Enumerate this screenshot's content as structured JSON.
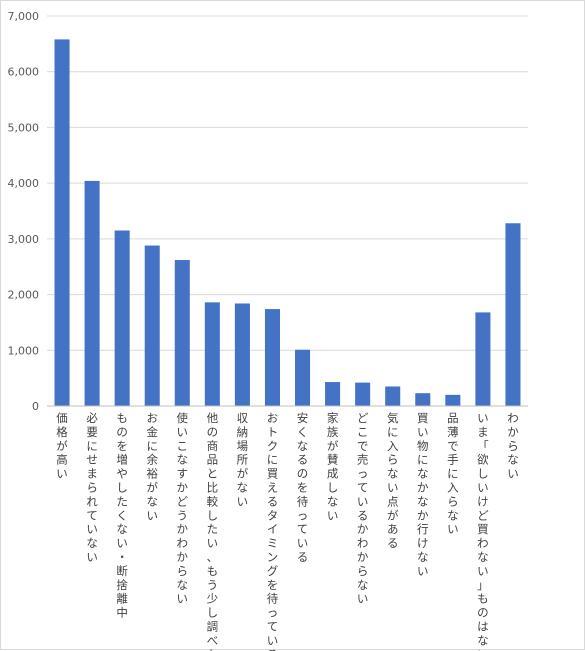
{
  "chart_data": {
    "type": "bar",
    "title": "",
    "xlabel": "",
    "ylabel": "",
    "ylim": [
      0,
      7000
    ],
    "yticks": [
      0,
      1000,
      2000,
      3000,
      4000,
      5000,
      6000,
      7000
    ],
    "ytick_labels": [
      "0",
      "1,000",
      "2,000",
      "3,000",
      "4,000",
      "5,000",
      "6,000",
      "7,000"
    ],
    "grid": true,
    "legend": "none",
    "bar_color": "#4472C4",
    "categories": [
      "価格が高い",
      "必要にせまられていない",
      "ものを増やしたくない・断捨離中",
      "お金に余裕がない",
      "使いこなすかどうかわからない",
      "他の商品と比較したい、もう少し調べたい",
      "収納場所がない",
      "おトクに買えるタイミングを待っている",
      "安くなるのを待っている",
      "家族が賛成しない",
      "どこで売っているかわからない",
      "気に入らない点がある",
      "買い物になかなか行けない",
      "品薄で手に入らない",
      "いま「欲しいけど買わない」ものはない",
      "わからない"
    ],
    "values": [
      6580,
      4040,
      3150,
      2880,
      2620,
      1860,
      1840,
      1740,
      1010,
      430,
      420,
      350,
      230,
      200,
      1680,
      3280
    ]
  }
}
